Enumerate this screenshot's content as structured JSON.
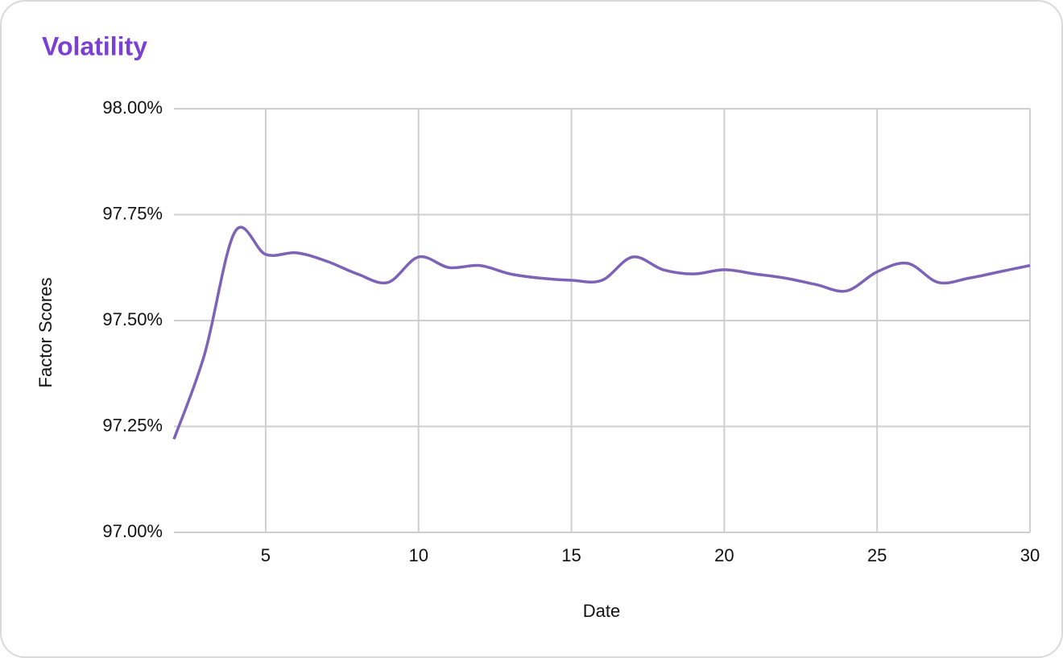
{
  "chart_data": {
    "type": "line",
    "title": "Volatility",
    "x_label": "Date",
    "y_label": "Factor Scores",
    "x": [
      2,
      3,
      4,
      5,
      6,
      7,
      8,
      9,
      10,
      11,
      12,
      13,
      14,
      15,
      16,
      17,
      18,
      19,
      20,
      21,
      22,
      23,
      24,
      25,
      26,
      27,
      28,
      29,
      30
    ],
    "series": [
      {
        "color": "#7d63b5",
        "values": [
          97.22,
          97.42,
          97.71,
          97.656,
          97.66,
          97.64,
          97.61,
          97.59,
          97.65,
          97.625,
          97.63,
          97.61,
          97.6,
          97.595,
          97.595,
          97.65,
          97.62,
          97.61,
          97.62,
          97.61,
          97.6,
          97.585,
          97.57,
          97.615,
          97.635,
          97.59,
          97.6,
          97.615,
          97.63
        ]
      }
    ],
    "xlim": [
      2,
      30
    ],
    "xticks": [
      5,
      10,
      15,
      20,
      25,
      30
    ],
    "ylim": [
      97,
      98
    ],
    "yticks": [
      {
        "value": 97,
        "label": "97.00%"
      },
      {
        "value": 97.25,
        "label": "97.25%"
      },
      {
        "value": 97.5,
        "label": "97.50%"
      },
      {
        "value": 97.75,
        "label": "97.75%"
      },
      {
        "value": 98,
        "label": "98.00%"
      }
    ],
    "grid": true
  }
}
